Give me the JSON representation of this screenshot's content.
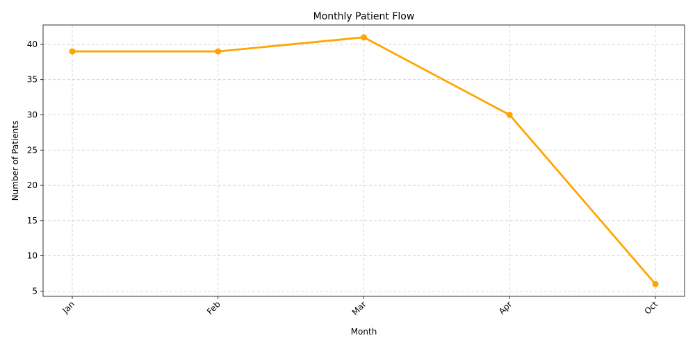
{
  "chart_data": {
    "type": "line",
    "title": "Monthly Patient Flow",
    "xlabel": "Month",
    "ylabel": "Number of Patients",
    "categories": [
      "Jan",
      "Feb",
      "Mar",
      "Apr",
      "Oct"
    ],
    "series": [
      {
        "values": [
          39,
          39,
          41,
          30,
          6
        ],
        "color": "#ffa500"
      }
    ],
    "ylim": [
      4.25,
      42.75
    ],
    "yticks": [
      5,
      10,
      15,
      20,
      25,
      30,
      35,
      40
    ],
    "grid": true,
    "legend": "none",
    "marker": "circle"
  }
}
